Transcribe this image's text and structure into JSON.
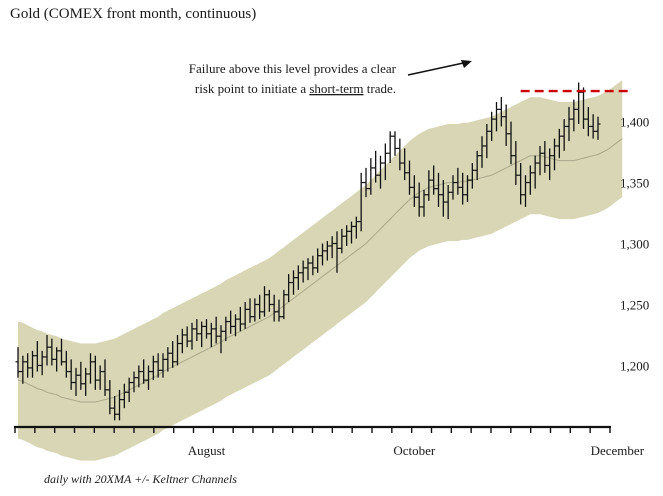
{
  "chart_data": {
    "type": "ohlc",
    "title": "Gold (COMEX front month, continuous)",
    "footnote": "daily with 20XMA +/- Keltner Channels",
    "xlabel": "",
    "ylabel": "",
    "y_ticks": [
      1200,
      1250,
      1300,
      1350,
      1400
    ],
    "y_tick_labels": [
      "1,200",
      "1,250",
      "1,300",
      "1,350",
      "1,400"
    ],
    "ylim": [
      1152,
      1480
    ],
    "x_tick_labels": [
      {
        "label": "August",
        "bar_index": 39
      },
      {
        "label": "October",
        "bar_index": 82
      },
      {
        "label": "December",
        "bar_index": 124
      }
    ],
    "x_tick_count": 30,
    "grid": false,
    "channel_color": "#d8d6b4",
    "ma_color": "#a9a88a",
    "bar_color": "#111111",
    "resistance_color": "#cc0000",
    "resistance_level": 1425,
    "resistance_start_bar": 104,
    "resistance_end_bar": 127,
    "annotation": {
      "line1": "Failure above this level provides a clear",
      "line2_prefix": "risk point to initiate a ",
      "line2_link": "short-term",
      "line2_suffix": " trade."
    },
    "ma_20": [
      1188,
      1187,
      1185,
      1183,
      1181,
      1180,
      1178,
      1177,
      1176,
      1174,
      1173,
      1172,
      1171,
      1170,
      1170,
      1170,
      1170,
      1171,
      1172,
      1173,
      1174,
      1176,
      1178,
      1180,
      1182,
      1184,
      1186,
      1188,
      1190,
      1192,
      1195,
      1197,
      1199,
      1201,
      1203,
      1205,
      1207,
      1209,
      1211,
      1213,
      1215,
      1217,
      1219,
      1222,
      1224,
      1226,
      1228,
      1230,
      1232,
      1234,
      1236,
      1238,
      1240,
      1243,
      1246,
      1249,
      1252,
      1255,
      1258,
      1261,
      1264,
      1267,
      1270,
      1273,
      1276,
      1279,
      1282,
      1285,
      1288,
      1291,
      1294,
      1297,
      1300,
      1304,
      1308,
      1312,
      1316,
      1320,
      1324,
      1328,
      1332,
      1336,
      1339,
      1342,
      1344,
      1346,
      1347,
      1348,
      1349,
      1350,
      1350,
      1350,
      1351,
      1351,
      1352,
      1353,
      1354,
      1355,
      1356,
      1358,
      1360,
      1362,
      1364,
      1366,
      1368,
      1370,
      1372,
      1372,
      1372,
      1371,
      1370,
      1369,
      1368,
      1368,
      1368,
      1368,
      1369,
      1370,
      1371,
      1372,
      1373,
      1375,
      1377,
      1380,
      1383,
      1386
    ],
    "bands_width": 48,
    "ohlc": [
      [
        1203,
        1215,
        1190,
        1195
      ],
      [
        1195,
        1208,
        1185,
        1203
      ],
      [
        1203,
        1210,
        1190,
        1198
      ],
      [
        1198,
        1212,
        1190,
        1208
      ],
      [
        1208,
        1220,
        1195,
        1200
      ],
      [
        1200,
        1212,
        1192,
        1207
      ],
      [
        1207,
        1225,
        1200,
        1215
      ],
      [
        1215,
        1222,
        1200,
        1205
      ],
      [
        1205,
        1215,
        1195,
        1212
      ],
      [
        1212,
        1222,
        1200,
        1203
      ],
      [
        1203,
        1212,
        1190,
        1195
      ],
      [
        1195,
        1205,
        1180,
        1186
      ],
      [
        1186,
        1198,
        1175,
        1192
      ],
      [
        1192,
        1203,
        1180,
        1185
      ],
      [
        1185,
        1198,
        1175,
        1193
      ],
      [
        1193,
        1210,
        1185,
        1203
      ],
      [
        1203,
        1208,
        1180,
        1188
      ],
      [
        1188,
        1200,
        1180,
        1195
      ],
      [
        1195,
        1205,
        1175,
        1180
      ],
      [
        1180,
        1188,
        1160,
        1165
      ],
      [
        1165,
        1175,
        1155,
        1160
      ],
      [
        1160,
        1180,
        1155,
        1172
      ],
      [
        1172,
        1185,
        1165,
        1178
      ],
      [
        1178,
        1190,
        1170,
        1186
      ],
      [
        1186,
        1195,
        1178,
        1190
      ],
      [
        1190,
        1200,
        1182,
        1195
      ],
      [
        1195,
        1205,
        1185,
        1188
      ],
      [
        1188,
        1200,
        1180,
        1195
      ],
      [
        1195,
        1208,
        1188,
        1203
      ],
      [
        1203,
        1210,
        1190,
        1196
      ],
      [
        1196,
        1210,
        1190,
        1205
      ],
      [
        1205,
        1215,
        1195,
        1210
      ],
      [
        1210,
        1220,
        1198,
        1203
      ],
      [
        1203,
        1225,
        1200,
        1218
      ],
      [
        1218,
        1230,
        1210,
        1225
      ],
      [
        1225,
        1232,
        1215,
        1220
      ],
      [
        1220,
        1235,
        1213,
        1230
      ],
      [
        1230,
        1238,
        1220,
        1226
      ],
      [
        1226,
        1236,
        1215,
        1232
      ],
      [
        1232,
        1238,
        1222,
        1226
      ],
      [
        1226,
        1235,
        1215,
        1230
      ],
      [
        1230,
        1240,
        1218,
        1224
      ],
      [
        1224,
        1233,
        1210,
        1228
      ],
      [
        1228,
        1240,
        1220,
        1236
      ],
      [
        1236,
        1245,
        1226,
        1232
      ],
      [
        1232,
        1242,
        1224,
        1238
      ],
      [
        1238,
        1248,
        1228,
        1234
      ],
      [
        1234,
        1252,
        1230,
        1246
      ],
      [
        1246,
        1255,
        1235,
        1240
      ],
      [
        1240,
        1255,
        1236,
        1250
      ],
      [
        1250,
        1258,
        1238,
        1244
      ],
      [
        1244,
        1265,
        1240,
        1258
      ],
      [
        1258,
        1262,
        1244,
        1250
      ],
      [
        1250,
        1258,
        1236,
        1244
      ],
      [
        1244,
        1254,
        1236,
        1240
      ],
      [
        1240,
        1262,
        1238,
        1258
      ],
      [
        1258,
        1275,
        1252,
        1268
      ],
      [
        1268,
        1278,
        1258,
        1272
      ],
      [
        1272,
        1282,
        1262,
        1276
      ],
      [
        1276,
        1286,
        1268,
        1280
      ],
      [
        1280,
        1288,
        1270,
        1284
      ],
      [
        1284,
        1290,
        1274,
        1280
      ],
      [
        1280,
        1296,
        1276,
        1290
      ],
      [
        1290,
        1300,
        1282,
        1294
      ],
      [
        1294,
        1302,
        1286,
        1298
      ],
      [
        1298,
        1306,
        1288,
        1300
      ],
      [
        1300,
        1310,
        1276,
        1296
      ],
      [
        1296,
        1312,
        1292,
        1306
      ],
      [
        1306,
        1315,
        1298,
        1310
      ],
      [
        1310,
        1318,
        1300,
        1314
      ],
      [
        1314,
        1322,
        1304,
        1318
      ],
      [
        1318,
        1358,
        1310,
        1350
      ],
      [
        1350,
        1362,
        1338,
        1345
      ],
      [
        1345,
        1370,
        1340,
        1362
      ],
      [
        1362,
        1376,
        1350,
        1356
      ],
      [
        1356,
        1372,
        1345,
        1366
      ],
      [
        1366,
        1382,
        1352,
        1374
      ],
      [
        1374,
        1392,
        1366,
        1388
      ],
      [
        1388,
        1392,
        1372,
        1378
      ],
      [
        1378,
        1386,
        1360,
        1366
      ],
      [
        1366,
        1378,
        1352,
        1358
      ],
      [
        1358,
        1368,
        1340,
        1346
      ],
      [
        1346,
        1356,
        1330,
        1338
      ],
      [
        1338,
        1350,
        1322,
        1330
      ],
      [
        1330,
        1344,
        1322,
        1340
      ],
      [
        1340,
        1360,
        1335,
        1352
      ],
      [
        1352,
        1364,
        1340,
        1345
      ],
      [
        1345,
        1358,
        1330,
        1340
      ],
      [
        1340,
        1352,
        1322,
        1334
      ],
      [
        1334,
        1348,
        1320,
        1342
      ],
      [
        1342,
        1356,
        1336,
        1350
      ],
      [
        1350,
        1362,
        1340,
        1346
      ],
      [
        1346,
        1358,
        1332,
        1340
      ],
      [
        1340,
        1356,
        1334,
        1352
      ],
      [
        1352,
        1366,
        1345,
        1360
      ],
      [
        1360,
        1376,
        1352,
        1372
      ],
      [
        1372,
        1388,
        1362,
        1380
      ],
      [
        1380,
        1398,
        1370,
        1392
      ],
      [
        1392,
        1408,
        1384,
        1402
      ],
      [
        1402,
        1416,
        1392,
        1410
      ],
      [
        1410,
        1420,
        1396,
        1404
      ],
      [
        1404,
        1414,
        1380,
        1390
      ],
      [
        1390,
        1400,
        1365,
        1372
      ],
      [
        1372,
        1384,
        1348,
        1356
      ],
      [
        1356,
        1366,
        1332,
        1340
      ],
      [
        1340,
        1356,
        1330,
        1350
      ],
      [
        1350,
        1364,
        1340,
        1358
      ],
      [
        1358,
        1372,
        1345,
        1366
      ],
      [
        1366,
        1380,
        1356,
        1374
      ],
      [
        1374,
        1384,
        1358,
        1364
      ],
      [
        1364,
        1378,
        1352,
        1372
      ],
      [
        1372,
        1386,
        1360,
        1380
      ],
      [
        1380,
        1394,
        1370,
        1388
      ],
      [
        1388,
        1402,
        1376,
        1396
      ],
      [
        1396,
        1412,
        1384,
        1402
      ],
      [
        1402,
        1418,
        1392,
        1410
      ],
      [
        1410,
        1432,
        1398,
        1424
      ],
      [
        1424,
        1428,
        1394,
        1402
      ],
      [
        1402,
        1412,
        1388,
        1396
      ],
      [
        1396,
        1406,
        1386,
        1392
      ],
      [
        1392,
        1404,
        1385,
        1398
      ]
    ]
  }
}
